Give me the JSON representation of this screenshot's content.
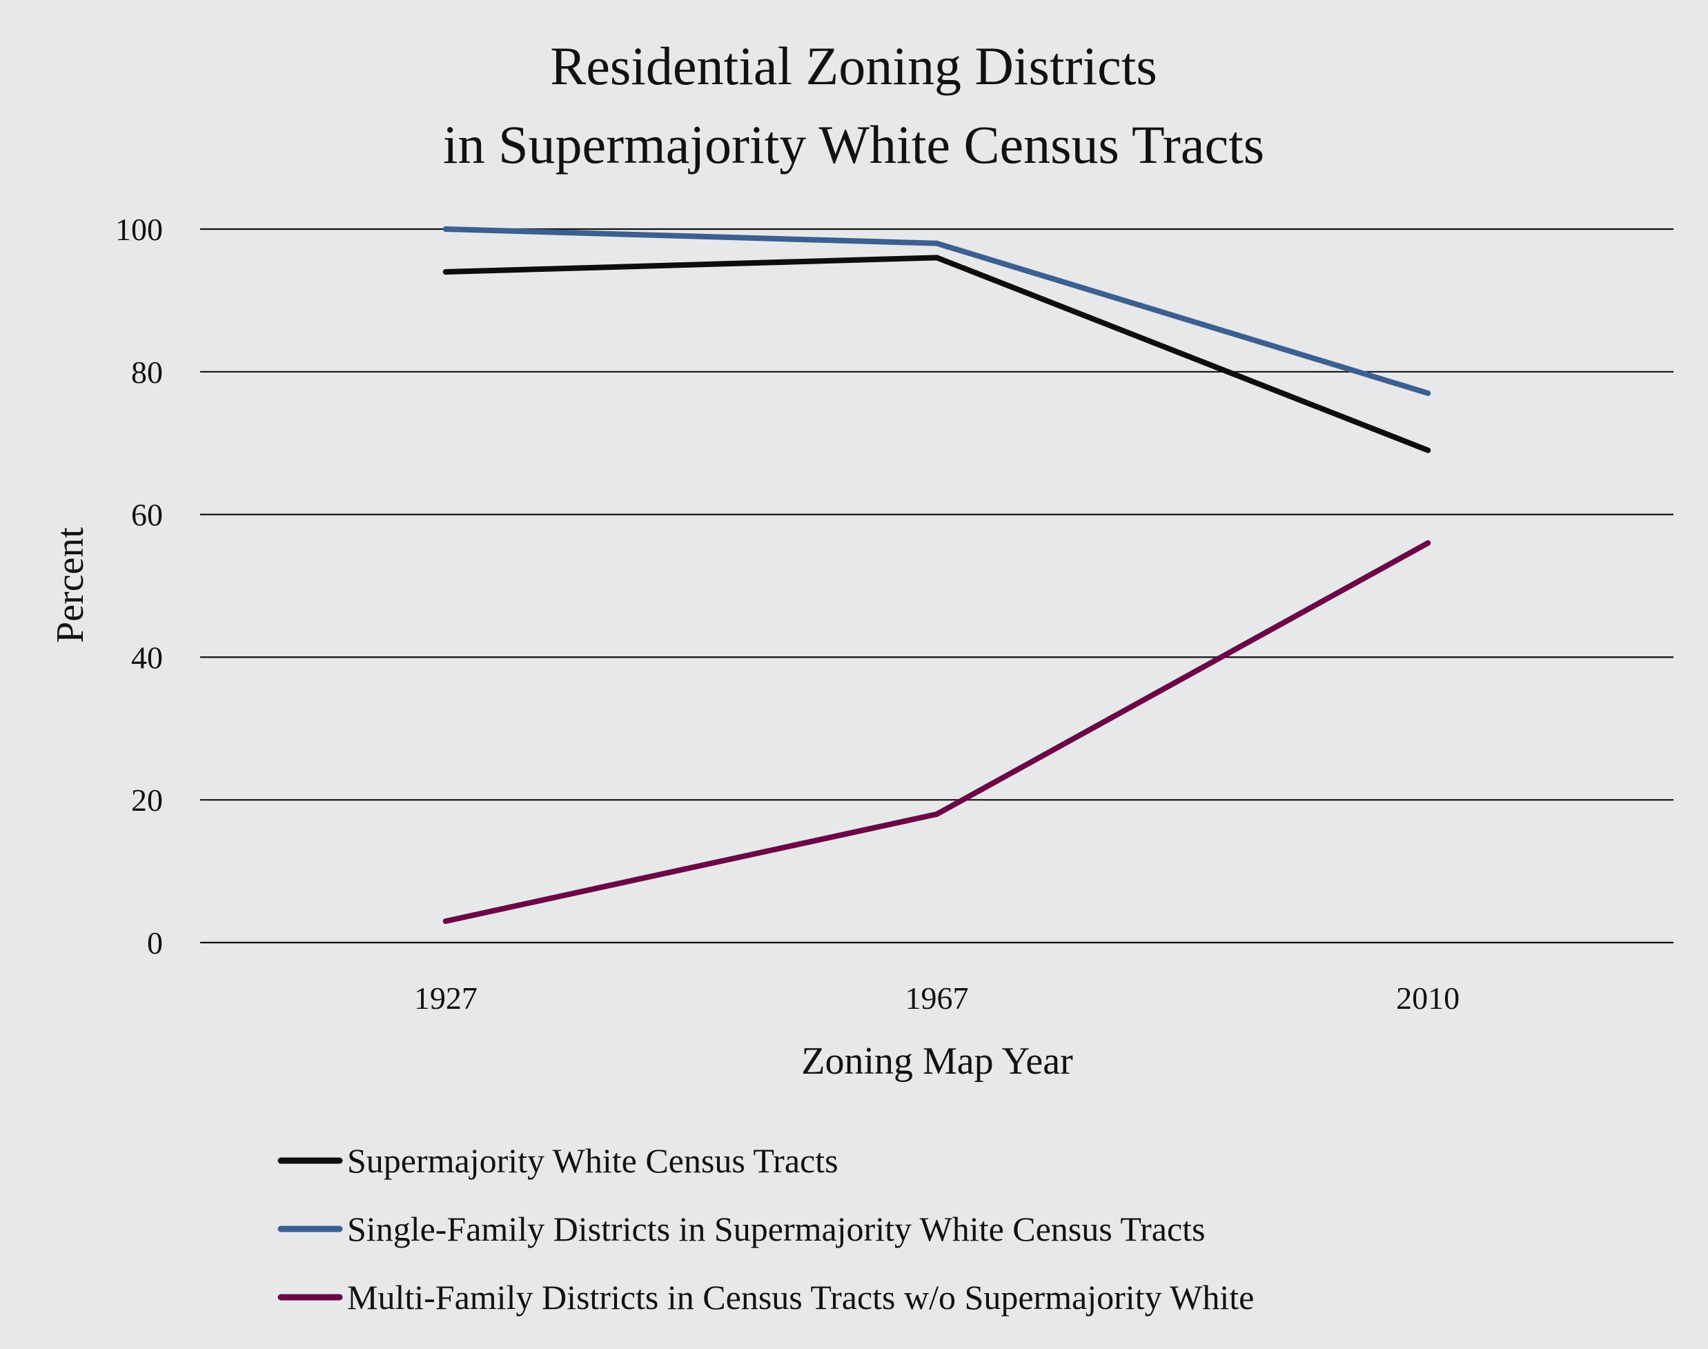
{
  "chart_data": {
    "type": "line",
    "title": [
      "Residential Zoning Districts",
      "in Supermajority White Census Tracts"
    ],
    "xlabel": "Zoning Map Year",
    "ylabel": "Percent",
    "categories": [
      "1927",
      "1967",
      "2010"
    ],
    "ylim": [
      0,
      100
    ],
    "yticks": [
      0,
      20,
      40,
      60,
      80,
      100
    ],
    "grid": "horizontal",
    "legend_position": "bottom-left",
    "series": [
      {
        "name": "Supermajority White Census Tracts",
        "color": "#0d0d0d",
        "values": [
          94,
          96,
          69
        ]
      },
      {
        "name": "Single-Family Districts in Supermajority White Census Tracts",
        "color": "#3b5f8f",
        "values": [
          100,
          98,
          77
        ]
      },
      {
        "name": "Multi-Family Districts in Census Tracts w/o Supermajority White",
        "color": "#6b0545",
        "values": [
          3,
          18,
          56
        ]
      }
    ]
  }
}
